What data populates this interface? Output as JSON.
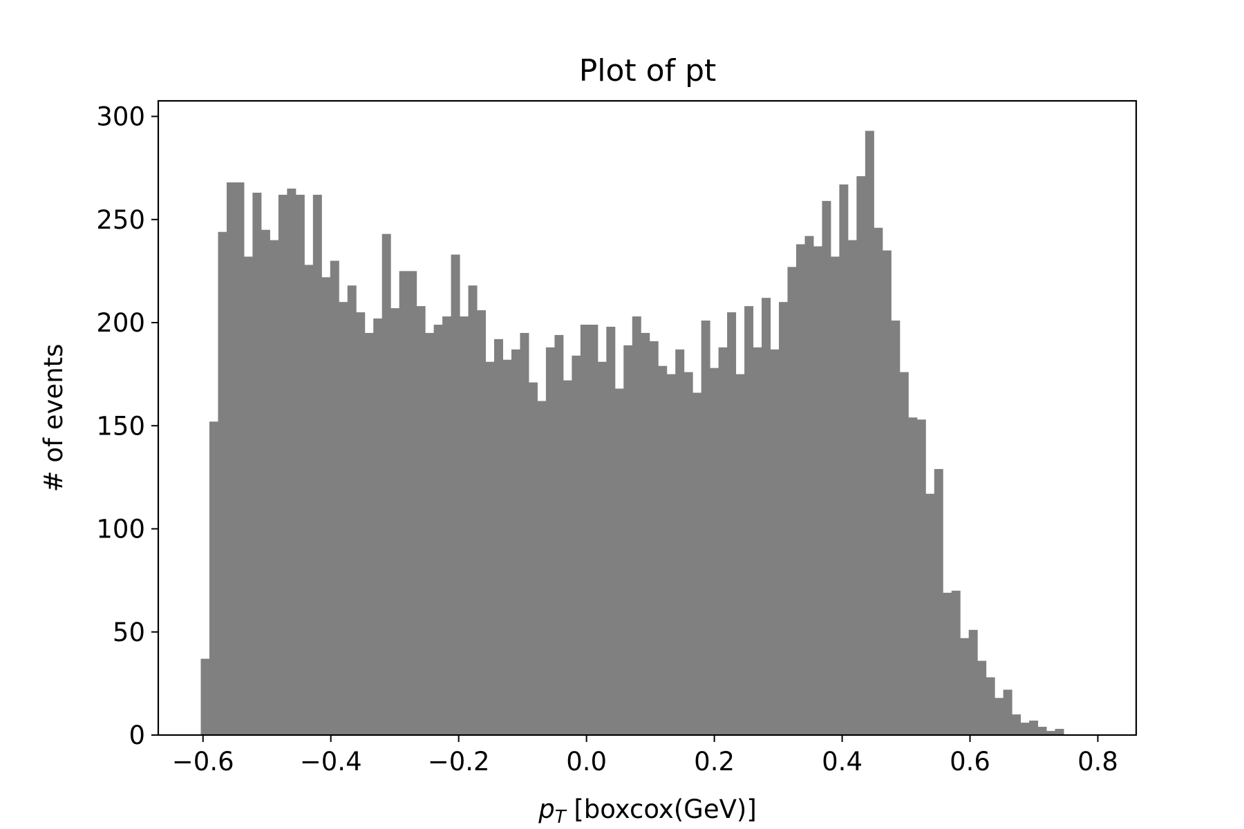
{
  "chart_data": {
    "type": "bar",
    "title": "Plot of pt",
    "xlabel": "p_T [boxcox(GeV)]",
    "xlabel_parts": {
      "main": "p",
      "sub": "T",
      "rest": " [boxcox(GeV)]"
    },
    "ylabel": "# of events",
    "bar_color": "#808080",
    "xlim": [
      -0.67,
      0.86
    ],
    "ylim": [
      0,
      300
    ],
    "x_ticks": [
      -0.6,
      -0.4,
      -0.2,
      0.0,
      0.2,
      0.4,
      0.6,
      0.8
    ],
    "x_tick_labels": [
      "−0.6",
      "−0.4",
      "−0.2",
      "0.0",
      "0.2",
      "0.4",
      "0.6",
      "0.8"
    ],
    "y_ticks": [
      0,
      50,
      100,
      150,
      200,
      250,
      300
    ],
    "y_tick_labels": [
      "0",
      "50",
      "100",
      "150",
      "200",
      "250",
      "300"
    ],
    "grid": false,
    "legend": "none",
    "bin_start": -0.6035,
    "bin_width": 0.0135,
    "values": [
      37,
      152,
      244,
      268,
      268,
      232,
      263,
      245,
      240,
      262,
      265,
      262,
      228,
      262,
      222,
      230,
      210,
      218,
      205,
      195,
      202,
      243,
      207,
      225,
      225,
      208,
      195,
      199,
      203,
      233,
      203,
      218,
      206,
      181,
      192,
      182,
      187,
      195,
      171,
      162,
      188,
      194,
      172,
      184,
      199,
      199,
      181,
      198,
      168,
      189,
      203,
      195,
      191,
      179,
      175,
      187,
      176,
      166,
      201,
      178,
      188,
      205,
      175,
      208,
      188,
      212,
      187,
      210,
      227,
      238,
      242,
      237,
      259,
      232,
      267,
      240,
      271,
      293,
      246,
      235,
      201,
      176,
      154,
      153,
      117,
      129,
      69,
      70,
      47,
      51,
      36,
      28,
      18,
      22,
      10,
      6,
      7,
      4,
      2,
      3
    ]
  }
}
